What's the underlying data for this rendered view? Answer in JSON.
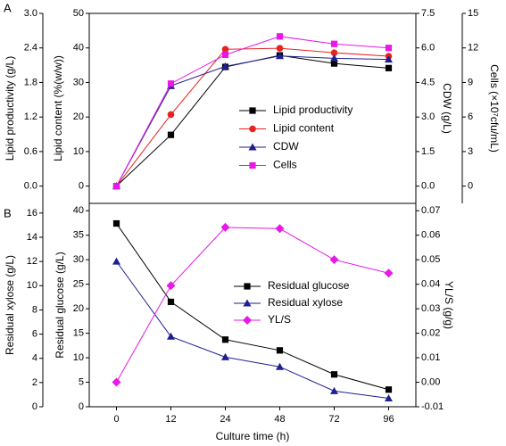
{
  "chart_data": [
    {
      "type": "line",
      "panel": "A",
      "ylabel": "Lipid content (%(w/w))",
      "ylim": [
        -5,
        50
      ],
      "yticks": [
        0,
        10,
        20,
        30,
        40,
        50
      ],
      "y2label": "Lipid productivity (g/L)",
      "y2lim": [
        -0.3,
        3.0
      ],
      "y2ticks": [
        {
          "value": 0,
          "label": "0.0"
        },
        0.6,
        1.2,
        1.8,
        2.4,
        {
          "value": 3,
          "label": "3.0"
        }
      ],
      "y3label": "CDW (g/L)",
      "y3lim": [
        -0.75,
        7.5
      ],
      "y3ticks": [
        {
          "value": 0,
          "label": "0.0"
        },
        1.5,
        {
          "value": 3,
          "label": "3.0"
        },
        4.5,
        {
          "value": 6,
          "label": "6.0"
        },
        7.5
      ],
      "y4label": "Cells (×10⁷cfu/mL)",
      "y4lim": [
        -1.5,
        15
      ],
      "y4ticks": [
        0,
        3,
        6,
        9,
        12,
        15
      ],
      "series": [
        {
          "name": "Lipid productivity",
          "color": "#000000",
          "marker": "square",
          "axis": "y2",
          "values": [
            0,
            0.89,
            2.07,
            2.27,
            2.13,
            2.05
          ]
        },
        {
          "name": "Lipid content",
          "color": "#e8231f",
          "marker": "circle",
          "axis": "y",
          "values": [
            0,
            20.7,
            39.6,
            39.9,
            38.6,
            37.6
          ]
        },
        {
          "name": "CDW",
          "color": "#1f1f8f",
          "marker": "triangle",
          "axis": "y3",
          "values": [
            0,
            4.35,
            5.2,
            5.65,
            5.55,
            5.5
          ]
        },
        {
          "name": "Cells",
          "color": "#e619e6",
          "marker": "square",
          "axis": "y4",
          "values": [
            0,
            8.9,
            11.4,
            13.0,
            12.35,
            12.0
          ]
        }
      ]
    },
    {
      "type": "line",
      "panel": "B",
      "categories": [
        "0",
        "12",
        "24",
        "48",
        "72",
        "96"
      ],
      "xlabel": "Culture time (h)",
      "ylabel": "Residual glucose (g/L)",
      "ylim": [
        0,
        41.5
      ],
      "yticks": [
        0,
        5,
        10,
        15,
        20,
        25,
        30,
        35,
        40
      ],
      "y2label": "Residual xylose (g/L)",
      "y2lim": [
        0,
        16.8
      ],
      "y2ticks": [
        0,
        2,
        4,
        6,
        8,
        10,
        12,
        14,
        16
      ],
      "y3label": "YL/S (g/g)",
      "y3lim": [
        -0.01,
        0.073
      ],
      "y3ticks": [
        -0.01,
        {
          "value": 0,
          "label": "0.00"
        },
        0.01,
        0.02,
        0.03,
        0.04,
        0.05,
        0.06,
        0.07
      ],
      "series": [
        {
          "name": "Residual glucose",
          "color": "#000000",
          "marker": "square",
          "axis": "y",
          "values": [
            37.4,
            21.4,
            13.7,
            11.5,
            6.6,
            3.5
          ]
        },
        {
          "name": "Residual xylose",
          "color": "#1f1f8f",
          "marker": "triangle",
          "axis": "y2",
          "values": [
            12.0,
            5.8,
            4.1,
            3.3,
            1.3,
            0.7
          ]
        },
        {
          "name": "YL/S",
          "color": "#e619e6",
          "marker": "diamond",
          "axis": "y3",
          "values": [
            0.0,
            0.0394,
            0.0632,
            0.0627,
            0.05,
            0.0445
          ]
        }
      ]
    }
  ]
}
